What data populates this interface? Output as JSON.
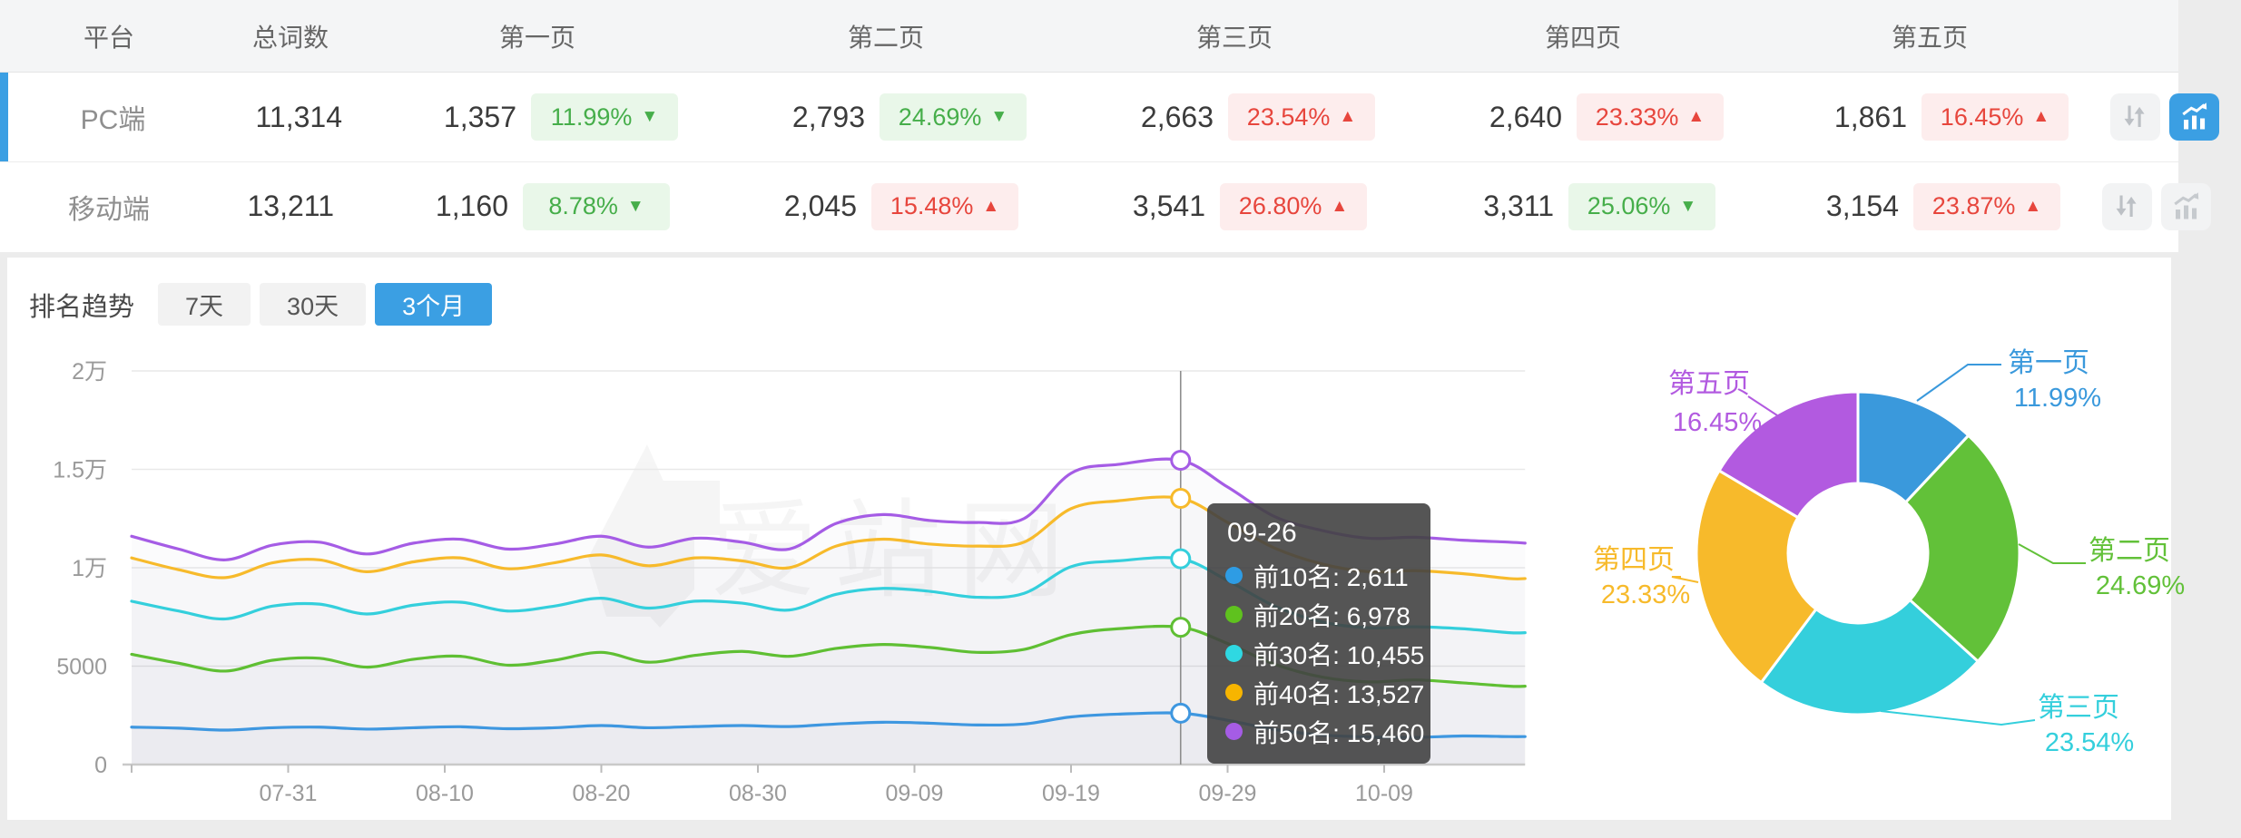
{
  "table": {
    "headers": {
      "platform": "平台",
      "total": "总词数",
      "pages": [
        "第一页",
        "第二页",
        "第三页",
        "第四页",
        "第五页"
      ]
    },
    "rows": [
      {
        "platform": "PC端",
        "total": "11,314",
        "selected": true,
        "chart_active": true,
        "pages": [
          {
            "value": "1,357",
            "pct": "11.99%",
            "dir": "down",
            "trend": "good"
          },
          {
            "value": "2,793",
            "pct": "24.69%",
            "dir": "down",
            "trend": "good"
          },
          {
            "value": "2,663",
            "pct": "23.54%",
            "dir": "up",
            "trend": "bad"
          },
          {
            "value": "2,640",
            "pct": "23.33%",
            "dir": "up",
            "trend": "bad"
          },
          {
            "value": "1,861",
            "pct": "16.45%",
            "dir": "up",
            "trend": "bad"
          }
        ]
      },
      {
        "platform": "移动端",
        "total": "13,211",
        "selected": false,
        "chart_active": false,
        "pages": [
          {
            "value": "1,160",
            "pct": "8.78%",
            "dir": "down",
            "trend": "good"
          },
          {
            "value": "2,045",
            "pct": "15.48%",
            "dir": "up",
            "trend": "bad"
          },
          {
            "value": "3,541",
            "pct": "26.80%",
            "dir": "up",
            "trend": "bad"
          },
          {
            "value": "3,311",
            "pct": "25.06%",
            "dir": "down",
            "trend": "good"
          },
          {
            "value": "3,154",
            "pct": "23.87%",
            "dir": "up",
            "trend": "bad"
          }
        ]
      }
    ]
  },
  "trend": {
    "title": "排名趋势",
    "ranges": [
      {
        "label": "7天",
        "active": false
      },
      {
        "label": "30天",
        "active": false
      },
      {
        "label": "3个月",
        "active": true
      }
    ]
  },
  "watermark": "爱站网",
  "chart_data": [
    {
      "type": "line",
      "title": "排名趋势 3个月",
      "xlabel": "",
      "ylabel": "",
      "ylim": [
        0,
        20000
      ],
      "grid": true,
      "x_tick_labels": [
        "07-31",
        "08-10",
        "08-20",
        "08-30",
        "09-09",
        "09-19",
        "09-29",
        "10-09"
      ],
      "x_tick_days": [
        10,
        20,
        30,
        40,
        50,
        60,
        70,
        80
      ],
      "y_tick_labels": [
        "0",
        "5000",
        "1万",
        "1.5万",
        "2万"
      ],
      "y_tick_values": [
        0,
        5000,
        10000,
        15000,
        20000
      ],
      "days": [
        0,
        3,
        6,
        9,
        12,
        15,
        18,
        21,
        24,
        27,
        30,
        33,
        36,
        39,
        42,
        45,
        48,
        51,
        54,
        57,
        60,
        63,
        67,
        70,
        73,
        76,
        79,
        82,
        85,
        88,
        89
      ],
      "series": [
        {
          "name": "前10名",
          "color": "#3e97e0",
          "values": [
            1900,
            1850,
            1750,
            1870,
            1900,
            1800,
            1870,
            1920,
            1820,
            1870,
            1980,
            1870,
            1930,
            1980,
            1930,
            2060,
            2150,
            2100,
            2010,
            2060,
            2420,
            2560,
            2611,
            2250,
            1780,
            1500,
            1400,
            1380,
            1450,
            1420,
            1420
          ]
        },
        {
          "name": "前20名",
          "color": "#5fbf33",
          "values": [
            5600,
            5150,
            4750,
            5300,
            5400,
            4950,
            5350,
            5500,
            5050,
            5300,
            5700,
            5200,
            5550,
            5750,
            5500,
            5900,
            6100,
            5950,
            5700,
            5850,
            6600,
            6900,
            6978,
            6150,
            5100,
            4450,
            4200,
            4300,
            4150,
            3980,
            3980
          ]
        },
        {
          "name": "前30名",
          "color": "#34cfdc",
          "values": [
            8300,
            7800,
            7400,
            8050,
            8150,
            7650,
            8100,
            8250,
            7800,
            8050,
            8450,
            7950,
            8300,
            8200,
            7850,
            8650,
            8950,
            8800,
            8500,
            8700,
            10050,
            10350,
            10455,
            9350,
            8050,
            7250,
            6950,
            7000,
            6900,
            6700,
            6700
          ]
        },
        {
          "name": "前40名",
          "color": "#f7ba2b",
          "values": [
            10500,
            9900,
            9500,
            10250,
            10400,
            9800,
            10300,
            10500,
            9950,
            10250,
            10650,
            10100,
            10500,
            10350,
            10000,
            11100,
            11450,
            11200,
            11100,
            11300,
            13000,
            13400,
            13527,
            12300,
            11000,
            10200,
            9800,
            9850,
            9700,
            9450,
            9450
          ]
        },
        {
          "name": "前50名",
          "color": "#a55ce5",
          "values": [
            11600,
            10950,
            10400,
            11150,
            11300,
            10700,
            11250,
            11450,
            10950,
            11200,
            11600,
            11050,
            11500,
            11300,
            10950,
            12250,
            12700,
            12400,
            12300,
            12500,
            14800,
            15250,
            15460,
            14100,
            12600,
            11900,
            11500,
            11550,
            11400,
            11300,
            11250
          ]
        }
      ],
      "crosshair": {
        "day": 67,
        "tooltip_title": "09-26",
        "items": [
          {
            "label": "前10名",
            "value": "2,611",
            "color": "#2e9ce4"
          },
          {
            "label": "前20名",
            "value": "6,978",
            "color": "#5fc21e"
          },
          {
            "label": "前30名",
            "value": "10,455",
            "color": "#2fd8e2"
          },
          {
            "label": "前40名",
            "value": "13,527",
            "color": "#f7b500"
          },
          {
            "label": "前50名",
            "value": "15,460",
            "color": "#a55ce5"
          }
        ]
      }
    },
    {
      "type": "pie",
      "donut": true,
      "slices": [
        {
          "label": "第一页",
          "pct": 11.99,
          "pct_label": "11.99%",
          "color": "#3a99dc"
        },
        {
          "label": "第二页",
          "pct": 24.69,
          "pct_label": "24.69%",
          "color": "#62c139"
        },
        {
          "label": "第三页",
          "pct": 23.54,
          "pct_label": "23.54%",
          "color": "#34cfdc"
        },
        {
          "label": "第四页",
          "pct": 23.33,
          "pct_label": "23.33%",
          "color": "#f7ba2b"
        },
        {
          "label": "第五页",
          "pct": 16.45,
          "pct_label": "16.45%",
          "color": "#b25ae0"
        }
      ]
    }
  ]
}
